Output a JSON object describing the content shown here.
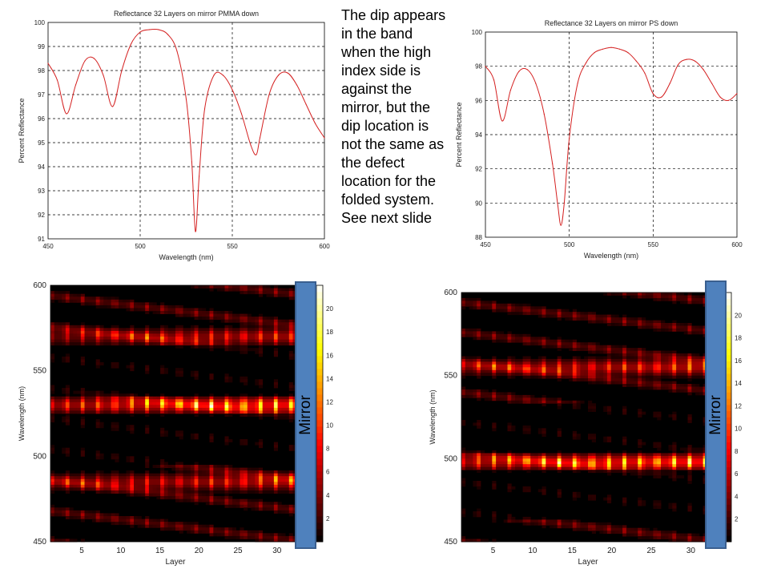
{
  "note_lines": [
    "The dip appears",
    "in the band",
    "when the high",
    "index side is",
    "against the",
    "mirror, but the",
    "dip location is",
    "not the same as",
    "the defect",
    "location for the",
    "folded  system.",
    "See next slide"
  ],
  "mirror": {
    "left_label": "Mirror",
    "right_label": "Mirror",
    "color": "#4f81bd"
  },
  "chart_data": [
    {
      "type": "line",
      "title": "Reflectance 32 Layers on mirror PMMA down",
      "xlabel": "Wavelength (nm)",
      "ylabel": "Percent Reflectance",
      "xlim": [
        450,
        600
      ],
      "ylim": [
        91,
        100
      ],
      "xticks": [
        450,
        500,
        550,
        600
      ],
      "yticks": [
        91,
        92,
        93,
        94,
        95,
        96,
        97,
        98,
        99,
        100
      ],
      "grid": "dashed",
      "line_color": "#d42020",
      "x": [
        450,
        455,
        460,
        465,
        470,
        475,
        480,
        485,
        490,
        495,
        500,
        505,
        510,
        515,
        520,
        525,
        528,
        530,
        532,
        535,
        540,
        545,
        550,
        555,
        560,
        563,
        565,
        570,
        575,
        580,
        585,
        590,
        595,
        600
      ],
      "y": [
        98.3,
        97.6,
        96.2,
        97.4,
        98.4,
        98.5,
        97.8,
        96.5,
        98.0,
        99.1,
        99.6,
        99.7,
        99.7,
        99.5,
        98.8,
        96.8,
        94.2,
        91.3,
        93.6,
        96.4,
        97.8,
        97.8,
        97.2,
        96.2,
        94.9,
        94.5,
        95.2,
        97.0,
        97.8,
        97.9,
        97.4,
        96.6,
        95.8,
        95.2
      ]
    },
    {
      "type": "line",
      "title": "Reflectance 32 Layers on mirror PS down",
      "xlabel": "Wavelength (nm)",
      "ylabel": "Percent Reflectance",
      "xlim": [
        450,
        600
      ],
      "ylim": [
        88,
        100
      ],
      "xticks": [
        450,
        500,
        550,
        600
      ],
      "yticks": [
        88,
        90,
        92,
        94,
        96,
        98,
        100
      ],
      "grid": "dashed",
      "line_color": "#d42020",
      "x": [
        450,
        455,
        460,
        465,
        470,
        475,
        480,
        485,
        490,
        493,
        495,
        497,
        500,
        505,
        510,
        515,
        520,
        525,
        530,
        535,
        540,
        545,
        550,
        555,
        560,
        565,
        570,
        575,
        580,
        585,
        590,
        595,
        600
      ],
      "y": [
        98.0,
        97.2,
        94.8,
        96.6,
        97.7,
        97.8,
        97.0,
        95.2,
        92.3,
        90.0,
        88.7,
        90.0,
        93.8,
        97.0,
        98.2,
        98.8,
        99.0,
        99.1,
        99.0,
        98.8,
        98.3,
        97.6,
        96.4,
        96.2,
        97.0,
        98.1,
        98.4,
        98.3,
        97.8,
        97.0,
        96.2,
        96.0,
        96.4
      ]
    },
    {
      "type": "heatmap",
      "title": "",
      "xlabel": "Layer",
      "ylabel": "Wavelength (nm)",
      "xlim": [
        1,
        33
      ],
      "ylim": [
        450,
        600
      ],
      "xticks": [
        5,
        10,
        15,
        20,
        25,
        30
      ],
      "yticks": [
        450,
        500,
        550,
        600
      ],
      "colorbar": {
        "min": 0,
        "max": 22,
        "ticks": [
          2,
          4,
          6,
          8,
          10,
          12,
          14,
          16,
          18,
          20
        ],
        "colormap": "hot"
      },
      "bands": [
        {
          "center_nm": 530,
          "peak": 20,
          "spacing_nm": 0
        },
        {
          "center_nm": 485,
          "peak": 13,
          "spacing_nm": 0
        },
        {
          "center_nm": 570,
          "peak": 12,
          "spacing_nm": 0
        }
      ],
      "fringe_period_nm": 18,
      "dip_nm": 530
    },
    {
      "type": "heatmap",
      "title": "",
      "xlabel": "Layer",
      "ylabel": "Wavelength (nm)",
      "xlim": [
        1,
        33
      ],
      "ylim": [
        450,
        600
      ],
      "xticks": [
        5,
        10,
        15,
        20,
        25,
        30
      ],
      "yticks": [
        450,
        500,
        550,
        600
      ],
      "colorbar": {
        "min": 0,
        "max": 22,
        "ticks": [
          2,
          4,
          6,
          8,
          10,
          12,
          14,
          16,
          18,
          20
        ],
        "colormap": "hot"
      },
      "bands": [
        {
          "center_nm": 498,
          "peak": 21,
          "spacing_nm": 0
        },
        {
          "center_nm": 555,
          "peak": 14,
          "spacing_nm": 0
        }
      ],
      "fringe_period_nm": 18,
      "dip_nm": 498
    }
  ]
}
